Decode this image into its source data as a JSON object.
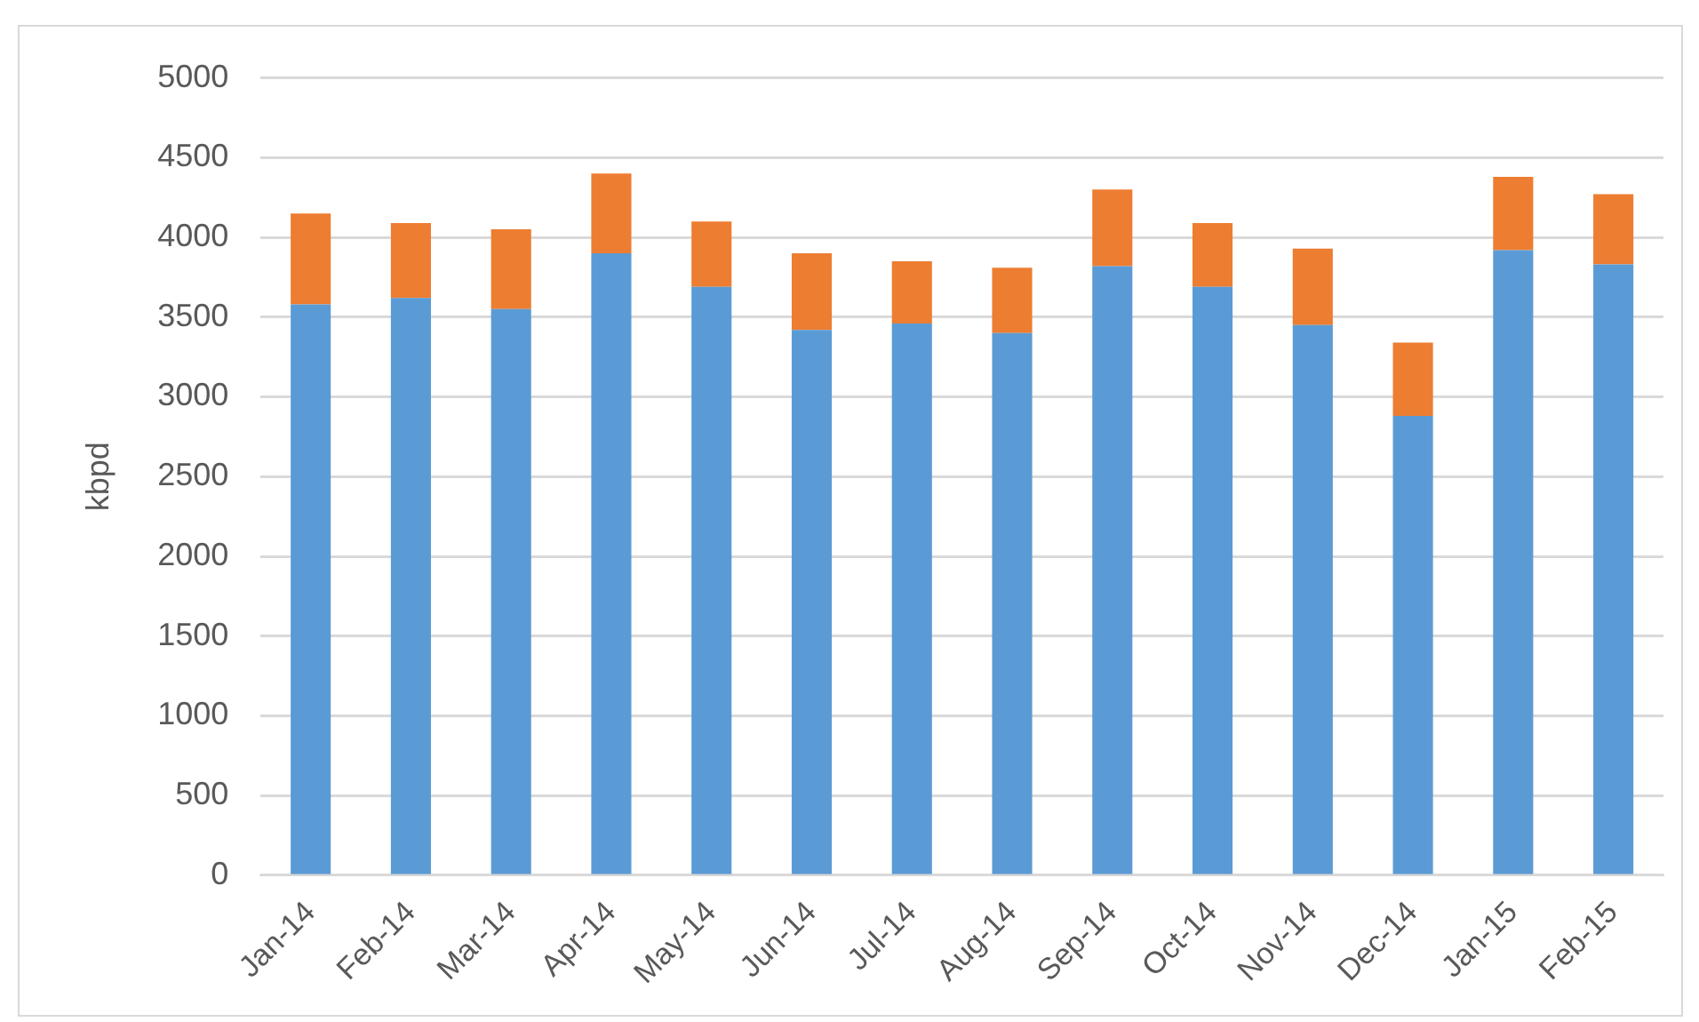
{
  "chart_data": {
    "type": "bar",
    "ylabel": "kbpd",
    "stacked": true,
    "grid": "y",
    "legend": false,
    "categories": [
      "Jan-14",
      "Feb-14",
      "Mar-14",
      "Apr-14",
      "May-14",
      "Jun-14",
      "Jul-14",
      "Aug-14",
      "Sep-14",
      "Oct-14",
      "Nov-14",
      "Dec-14",
      "Jan-15",
      "Feb-15"
    ],
    "series": [
      {
        "color": "#5b9bd5",
        "values": [
          3580,
          3620,
          3550,
          3900,
          3690,
          3420,
          3460,
          3400,
          3820,
          3690,
          3450,
          2880,
          3920,
          3830
        ]
      },
      {
        "color": "#ed7d31",
        "values": [
          570,
          470,
          500,
          500,
          410,
          480,
          390,
          410,
          480,
          400,
          480,
          460,
          460,
          440
        ]
      }
    ],
    "ylim": [
      0,
      5000
    ],
    "yticks": [
      0,
      500,
      1000,
      1500,
      2000,
      2500,
      3000,
      3500,
      4000,
      4500,
      5000
    ]
  }
}
